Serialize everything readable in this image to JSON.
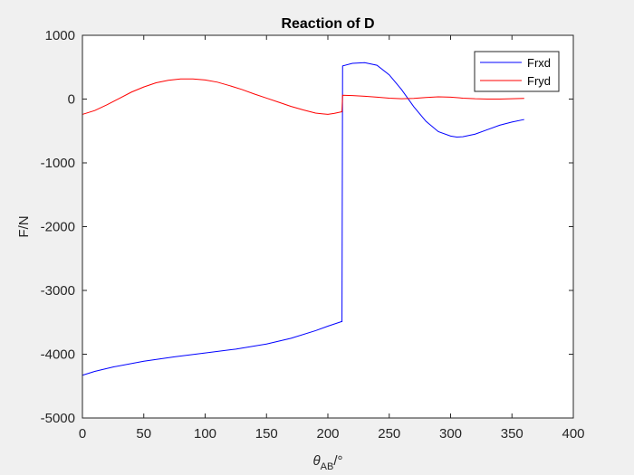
{
  "chart_data": {
    "type": "line",
    "title": "Reaction of D",
    "xlabel": {
      "main": "θ",
      "sub": "AB",
      "tail": "/°"
    },
    "ylabel": "F/N",
    "xlim": [
      0,
      400
    ],
    "ylim": [
      -5000,
      1000
    ],
    "xticks": [
      0,
      50,
      100,
      150,
      200,
      250,
      300,
      350,
      400
    ],
    "yticks": [
      -5000,
      -4000,
      -3000,
      -2000,
      -1000,
      0,
      1000
    ],
    "grid": false,
    "legend_position": "top-right",
    "series": [
      {
        "name": "Frxd",
        "color": "#0000ff",
        "x": [
          0,
          10,
          25,
          50,
          75,
          100,
          125,
          150,
          170,
          190,
          200,
          211,
          211.5,
          212,
          220,
          230,
          240,
          250,
          260,
          270,
          280,
          290,
          300,
          305,
          310,
          320,
          330,
          340,
          350,
          360
        ],
        "y": [
          -4330,
          -4270,
          -4200,
          -4110,
          -4040,
          -3980,
          -3920,
          -3840,
          -3750,
          -3630,
          -3560,
          -3490,
          -3490,
          520,
          560,
          570,
          530,
          380,
          150,
          -120,
          -350,
          -510,
          -580,
          -595,
          -590,
          -550,
          -480,
          -410,
          -360,
          -320
        ]
      },
      {
        "name": "Fryd",
        "color": "#ff0000",
        "x": [
          0,
          10,
          20,
          30,
          40,
          50,
          60,
          70,
          80,
          90,
          100,
          110,
          120,
          130,
          140,
          150,
          160,
          170,
          180,
          190,
          195,
          200,
          205,
          211,
          211.5,
          212,
          220,
          230,
          240,
          250,
          260,
          270,
          280,
          290,
          300,
          310,
          320,
          330,
          340,
          350,
          360
        ],
        "y": [
          -240,
          -180,
          -90,
          10,
          110,
          190,
          255,
          295,
          315,
          315,
          300,
          265,
          210,
          150,
          80,
          15,
          -50,
          -115,
          -170,
          -220,
          -230,
          -240,
          -225,
          -200,
          -200,
          60,
          55,
          45,
          30,
          15,
          5,
          10,
          25,
          35,
          30,
          15,
          5,
          0,
          0,
          5,
          10
        ]
      }
    ]
  }
}
